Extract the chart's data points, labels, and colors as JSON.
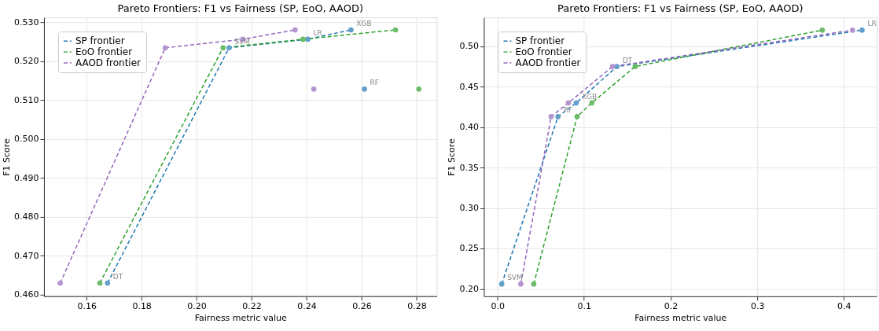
{
  "chart_data": [
    {
      "type": "line",
      "title": "Pareto Frontiers: F1 vs Fairness (SP, EoO, AAOD)",
      "xlabel": "Fairness metric value",
      "ylabel": "F1 Score",
      "xlim": [
        0.1445,
        0.2873
      ],
      "xticks": [
        0.16,
        0.18,
        {
          "value": 0.2,
          "label": "0.20"
        },
        0.22,
        0.24,
        0.26,
        0.28
      ],
      "ylim": [
        0.4596,
        0.5312
      ],
      "yticks": [
        {
          "value": 0.46,
          "label": "0.460"
        },
        {
          "value": 0.47,
          "label": "0.470"
        },
        {
          "value": 0.48,
          "label": "0.480"
        },
        {
          "value": 0.49,
          "label": "0.490"
        },
        {
          "value": 0.5,
          "label": "0.500"
        },
        {
          "value": 0.51,
          "label": "0.510"
        },
        {
          "value": 0.52,
          "label": "0.520"
        },
        {
          "value": 0.53,
          "label": "0.530"
        }
      ],
      "grid": true,
      "legend": "top left",
      "series": [
        {
          "type": "scatter",
          "marker": "circle",
          "color": "#629fca",
          "x": [
            0.1676,
            0.2118,
            0.2404,
            0.2561,
            0.261
          ],
          "values": [
            0.463,
            0.5234,
            0.5256,
            0.528,
            0.5128
          ]
        },
        {
          "type": "scatter",
          "marker": "circle",
          "color": "#6bbc6b",
          "x": [
            0.1648,
            0.2096,
            0.2387,
            0.2723,
            0.2808
          ],
          "values": [
            0.463,
            0.5234,
            0.5256,
            0.528,
            0.5128
          ]
        },
        {
          "type": "scatter",
          "marker": "circle",
          "color": "#b494d1",
          "x": [
            0.1504,
            0.1886,
            0.2168,
            0.2358,
            0.2426
          ],
          "values": [
            0.463,
            0.5234,
            0.5256,
            0.528,
            0.5128
          ]
        },
        {
          "name": "SP frontier",
          "line_style": "dashed",
          "color": "#1f77b4",
          "x": [
            0.1676,
            0.2118,
            0.2404,
            0.2561
          ],
          "values": [
            0.463,
            0.5234,
            0.5256,
            0.528
          ]
        },
        {
          "name": "EoO frontier",
          "line_style": "dashed",
          "color": "#2ca02c",
          "x": [
            0.1648,
            0.2096,
            0.2387,
            0.2723
          ],
          "values": [
            0.463,
            0.5234,
            0.5256,
            0.528
          ]
        },
        {
          "name": "AAOD frontier",
          "line_style": "dashed",
          "color": "#9467bd",
          "x": [
            0.1504,
            0.1886,
            0.2168,
            0.2358
          ],
          "values": [
            0.463,
            0.5234,
            0.5256,
            0.528
          ]
        }
      ],
      "annotations": [
        {
          "text": "DT",
          "x": 0.1676,
          "y": 0.463
        },
        {
          "text": "SVM",
          "x": 0.2118,
          "y": 0.5234
        },
        {
          "text": "LR",
          "x": 0.2404,
          "y": 0.5256
        },
        {
          "text": "XGB",
          "x": 0.2561,
          "y": 0.528
        },
        {
          "text": "RF",
          "x": 0.261,
          "y": 0.5128
        }
      ]
    },
    {
      "type": "line",
      "title": "Pareto Frontiers: F1 vs Fairness (SP, EoO, AAOD)",
      "xlabel": "Fairness metric value",
      "ylabel": "F1 Score",
      "xlim": [
        -0.0156,
        0.4378
      ],
      "xticks": [
        {
          "value": 0,
          "label": "0.0"
        },
        {
          "value": 0.1,
          "label": "0.1"
        },
        {
          "value": 0.2,
          "label": "0.2"
        },
        {
          "value": 0.3,
          "label": "0.3"
        },
        {
          "value": 0.4,
          "label": "0.4"
        }
      ],
      "ylim": [
        0.1908,
        0.5357
      ],
      "yticks": [
        {
          "value": 0.2,
          "label": "0.20"
        },
        0.25,
        {
          "value": 0.3,
          "label": "0.30"
        },
        0.35,
        {
          "value": 0.4,
          "label": "0.40"
        },
        0.45,
        {
          "value": 0.5,
          "label": "0.50"
        }
      ],
      "grid": true,
      "legend": "top left",
      "series": [
        {
          "type": "scatter",
          "marker": "circle",
          "color": "#629fca",
          "x": [
            0.005,
            0.07,
            0.091,
            0.138,
            0.421
          ],
          "values": [
            0.206,
            0.413,
            0.43,
            0.475,
            0.52
          ]
        },
        {
          "type": "scatter",
          "marker": "circle",
          "color": "#6bbc6b",
          "x": [
            0.042,
            0.092,
            0.109,
            0.159,
            0.375
          ],
          "values": [
            0.206,
            0.413,
            0.43,
            0.475,
            0.52
          ]
        },
        {
          "type": "scatter",
          "marker": "circle",
          "color": "#b494d1",
          "x": [
            0.027,
            0.062,
            0.082,
            0.133,
            0.41
          ],
          "values": [
            0.206,
            0.413,
            0.43,
            0.475,
            0.52
          ]
        },
        {
          "name": "SP frontier",
          "line_style": "dashed",
          "color": "#1f77b4",
          "x": [
            0.005,
            0.07,
            0.091,
            0.138,
            0.421
          ],
          "values": [
            0.206,
            0.413,
            0.43,
            0.475,
            0.52
          ]
        },
        {
          "name": "EoO frontier",
          "line_style": "dashed",
          "color": "#2ca02c",
          "x": [
            0.042,
            0.092,
            0.109,
            0.159,
            0.375
          ],
          "values": [
            0.206,
            0.413,
            0.43,
            0.475,
            0.52
          ]
        },
        {
          "name": "AAOD frontier",
          "line_style": "dashed",
          "color": "#9467bd",
          "x": [
            0.027,
            0.062,
            0.082,
            0.133,
            0.41
          ],
          "values": [
            0.206,
            0.413,
            0.43,
            0.475,
            0.52
          ]
        }
      ],
      "annotations": [
        {
          "text": "SVM",
          "x": 0.005,
          "y": 0.206
        },
        {
          "text": "RF",
          "x": 0.07,
          "y": 0.413
        },
        {
          "text": "XGB",
          "x": 0.091,
          "y": 0.43
        },
        {
          "text": "DT",
          "x": 0.138,
          "y": 0.475
        },
        {
          "text": "LR",
          "x": 0.421,
          "y": 0.52
        }
      ]
    }
  ]
}
